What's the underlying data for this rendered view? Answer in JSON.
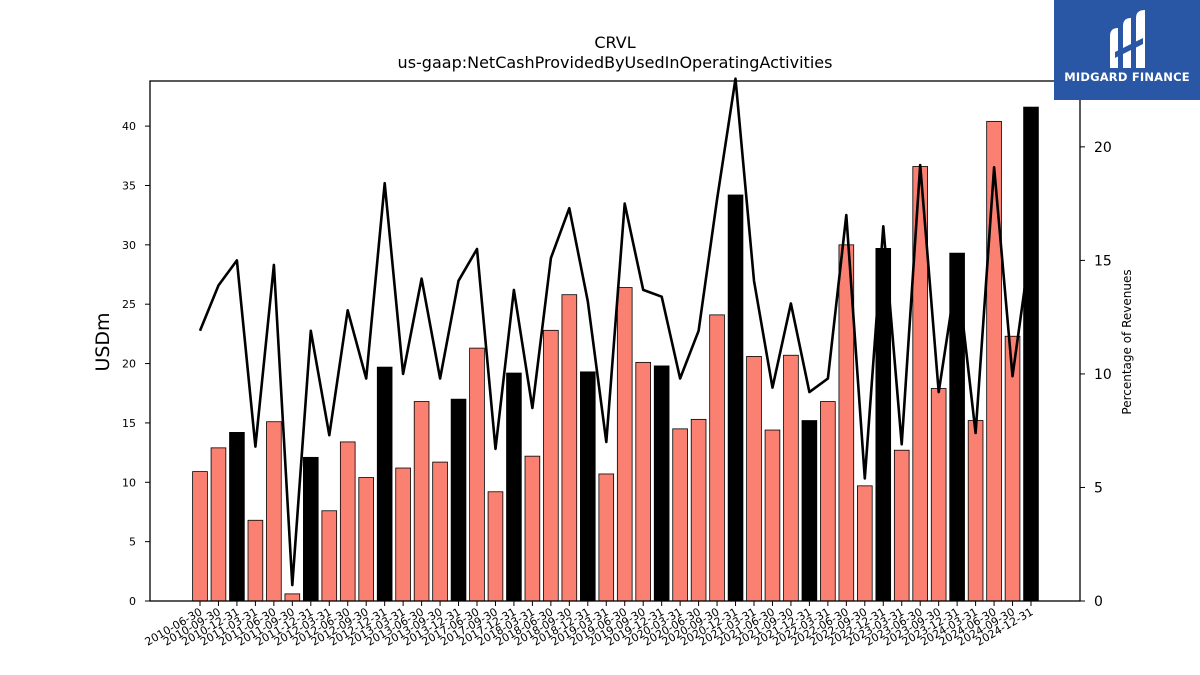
{
  "brand": {
    "name": "MIDGARD FINANCE"
  },
  "colors": {
    "highlight": "#000000",
    "bar": "#fa8072",
    "line": "#000000"
  },
  "chart_data": {
    "type": "bar",
    "title": "CRVL",
    "subtitle": "us-gaap:NetCashProvidedByUsedInOperatingActivities",
    "ylabel": "USDm",
    "y2label": "Percentage of Revenues",
    "ylim": [
      0,
      43.8
    ],
    "y2lim": [
      0,
      22.9
    ],
    "yticks": [
      0,
      5,
      10,
      15,
      20,
      25,
      30,
      35,
      40
    ],
    "y2ticks": [
      0,
      5,
      10,
      15,
      20
    ],
    "categories": [
      "2010-06-30",
      "2010-09-30",
      "2010-12-31",
      "2011-03-31",
      "2011-06-30",
      "2011-09-30",
      "2011-12-31",
      "2012-03-31",
      "2012-06-30",
      "2012-09-30",
      "2012-12-31",
      "2013-03-31",
      "2013-06-30",
      "2013-09-30",
      "2013-12-31",
      "2017-06-30",
      "2017-09-30",
      "2017-12-31",
      "2018-03-31",
      "2018-06-30",
      "2018-09-30",
      "2018-12-31",
      "2019-03-31",
      "2019-06-30",
      "2019-09-30",
      "2019-12-31",
      "2020-03-31",
      "2020-06-30",
      "2020-09-30",
      "2020-12-31",
      "2021-03-31",
      "2021-06-30",
      "2021-09-30",
      "2021-12-31",
      "2022-03-31",
      "2022-06-30",
      "2022-09-30",
      "2022-12-31",
      "2023-03-31",
      "2023-06-30",
      "2023-09-30",
      "2023-12-31",
      "2024-03-31",
      "2024-06-30",
      "2024-09-30",
      "2024-12-31"
    ],
    "series": [
      {
        "type": "bar",
        "values": [
          10.9,
          12.9,
          14.2,
          6.8,
          15.1,
          0.6,
          12.1,
          7.6,
          13.4,
          10.4,
          19.7,
          11.2,
          16.8,
          11.7,
          17.0,
          21.3,
          9.2,
          19.2,
          12.2,
          22.8,
          25.8,
          19.3,
          10.7,
          26.4,
          20.1,
          19.8,
          14.5,
          15.3,
          24.1,
          34.2,
          20.6,
          14.4,
          20.7,
          15.2,
          16.8,
          30.0,
          9.7,
          29.7,
          12.7,
          36.6,
          17.9,
          29.3,
          15.2,
          40.4,
          22.3,
          41.6
        ]
      },
      {
        "type": "line",
        "values": [
          11.9,
          13.9,
          15.0,
          6.8,
          14.8,
          0.7,
          11.9,
          7.3,
          12.8,
          9.8,
          18.4,
          10.0,
          14.2,
          9.8,
          14.1,
          15.5,
          6.7,
          13.7,
          8.5,
          15.1,
          17.3,
          13.2,
          7.0,
          17.5,
          13.7,
          13.4,
          9.8,
          11.9,
          17.7,
          23.0,
          14.1,
          9.4,
          13.1,
          9.2,
          9.8,
          17.0,
          5.4,
          16.5,
          6.9,
          19.2,
          9.2,
          14.5,
          7.4,
          19.1,
          9.9,
          15.8
        ]
      }
    ],
    "highlight_quarter": "12-31",
    "grid": false,
    "legend": "none"
  }
}
